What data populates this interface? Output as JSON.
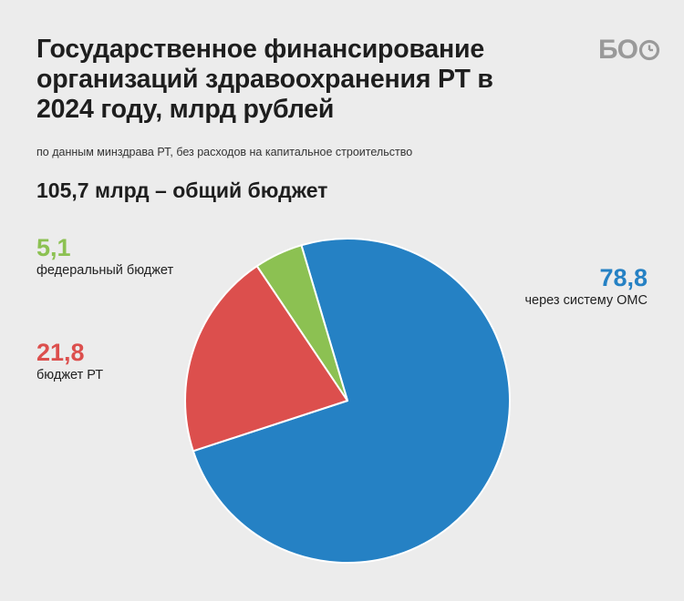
{
  "title": "Государственное финансирование организаций здравоохранения РТ в 2024 году, млрд рублей",
  "source_note": "по данным минздрава РТ, без расходов на капитальное строительство",
  "total_label": "105,7 млрд – общий бюджет",
  "logo": "БО",
  "logo_icon": "clock-icon",
  "chart_data": {
    "type": "pie",
    "total": 105.7,
    "slices": [
      {
        "label": "через систему ОМС",
        "value": 78.8,
        "value_label": "78,8",
        "color": "#2581c4"
      },
      {
        "label": "бюджет РТ",
        "value": 21.8,
        "value_label": "21,8",
        "color": "#dc4f4d"
      },
      {
        "label": "федеральный бюджет",
        "value": 5.1,
        "value_label": "5,1",
        "color": "#8cc152"
      }
    ]
  }
}
